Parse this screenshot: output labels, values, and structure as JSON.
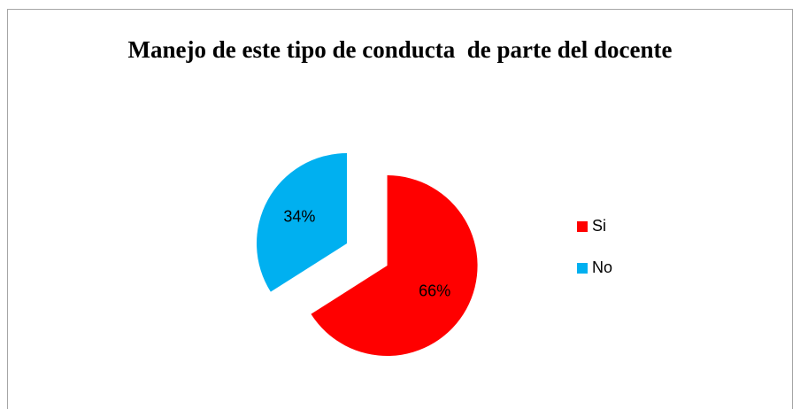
{
  "chart_data": {
    "type": "pie",
    "title": "Manejo de este tipo de conducta  de parte del docente",
    "categories": [
      "Si",
      "No"
    ],
    "values": [
      66,
      34
    ],
    "value_labels": [
      "66%",
      "34%"
    ],
    "colors": [
      "#ff0000",
      "#00b0f0"
    ],
    "legend": "right"
  }
}
